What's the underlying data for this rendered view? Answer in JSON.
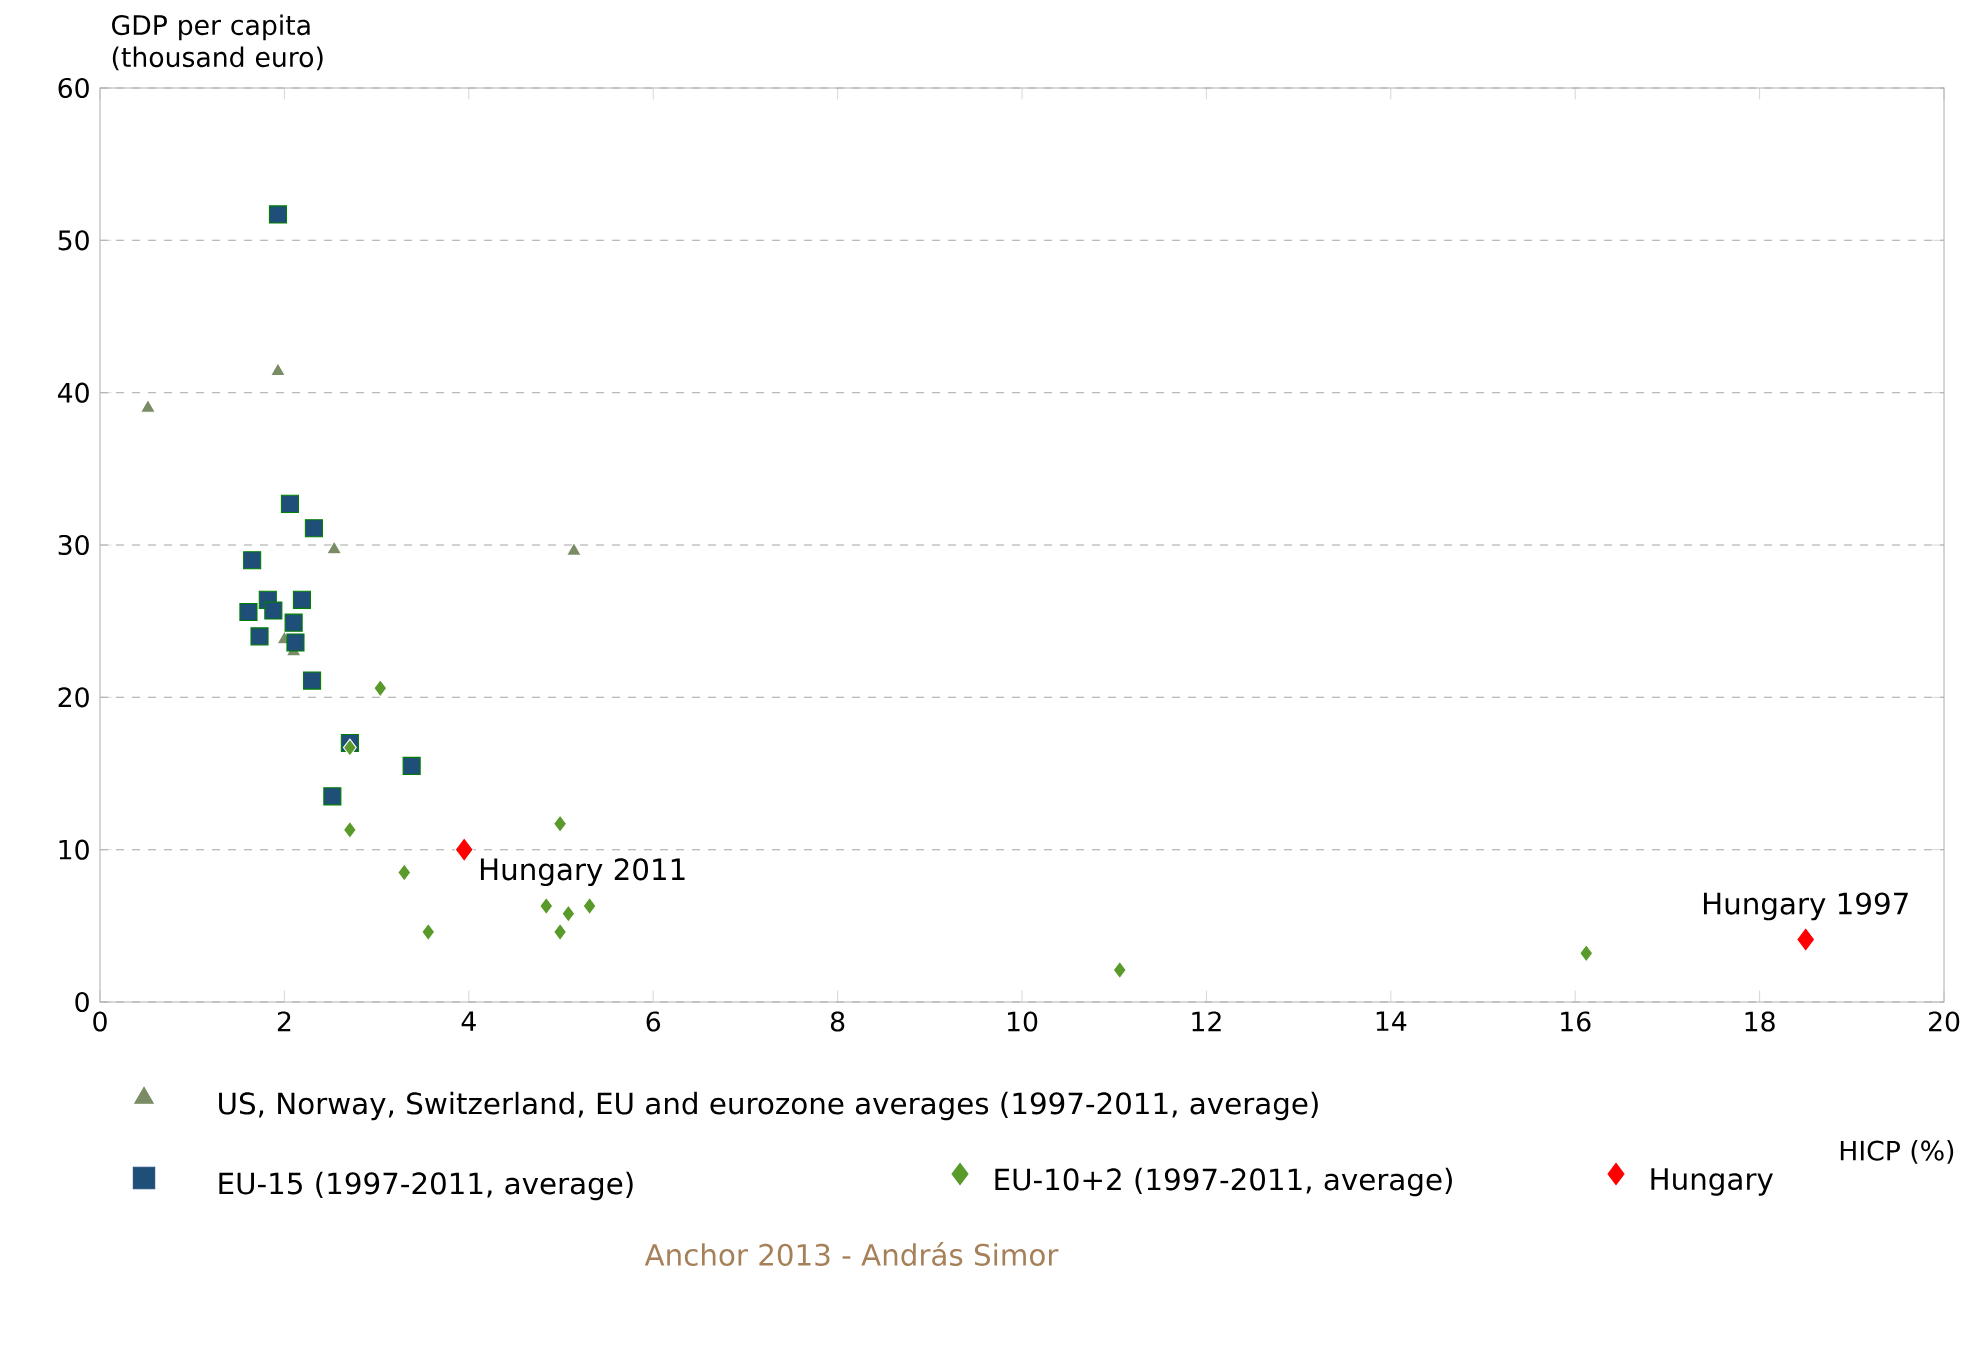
{
  "chart_data": {
    "type": "scatter",
    "xlabel": "HICP (%)",
    "ylabel": "GDP per capita (thousand euro)",
    "xlim": [
      0,
      20
    ],
    "ylim": [
      0,
      60
    ],
    "xticks": [
      0,
      2,
      4,
      6,
      8,
      10,
      12,
      14,
      16,
      18,
      20
    ],
    "yticks": [
      0,
      10,
      20,
      30,
      40,
      50,
      60
    ],
    "grid": "y",
    "legend": "bottom",
    "series": [
      {
        "name": "US, Norway, Switzerland, EU and eurozone averages (1997-2011, average)",
        "color": "#7a8c66",
        "marker": "triangle",
        "x": [
          0.52,
          1.93,
          2.54,
          5.14,
          2.0,
          2.1
        ],
        "values": [
          39.0,
          41.4,
          29.7,
          29.6,
          23.8,
          23.0
        ]
      },
      {
        "name": "EU-15 (1997-2011, average)",
        "color": "#1f4e79",
        "marker": "square",
        "x": [
          1.93,
          2.06,
          2.32,
          1.65,
          1.82,
          2.19,
          1.61,
          1.88,
          2.1,
          1.73,
          2.12,
          2.3,
          2.71,
          3.38,
          2.52
        ],
        "values": [
          51.7,
          32.7,
          31.1,
          29.0,
          26.4,
          26.4,
          25.6,
          25.7,
          24.9,
          24.0,
          23.6,
          21.1,
          17.0,
          15.5,
          13.5
        ]
      },
      {
        "name": "EU-10+2 (1997-2011, average)",
        "color": "#5a9a2a",
        "marker": "diamond",
        "x": [
          3.04,
          2.71,
          2.71,
          4.99,
          3.3,
          4.84,
          5.08,
          5.31,
          4.99,
          3.56,
          11.06,
          16.12
        ],
        "values": [
          20.6,
          16.7,
          11.3,
          11.7,
          8.5,
          6.3,
          5.8,
          6.3,
          4.6,
          4.6,
          2.1,
          3.2
        ]
      },
      {
        "name": "Hungary",
        "color": "#ff0000",
        "marker": "diamond",
        "x": [
          3.95,
          18.5
        ],
        "values": [
          10.0,
          4.1
        ]
      }
    ],
    "annotations": [
      {
        "text": "Hungary 2011",
        "x": 3.95,
        "y": 10.0
      },
      {
        "text": "Hungary 1997",
        "x": 18.5,
        "y": 4.1
      },
      "Anchor 2013 - András Simor"
    ]
  }
}
